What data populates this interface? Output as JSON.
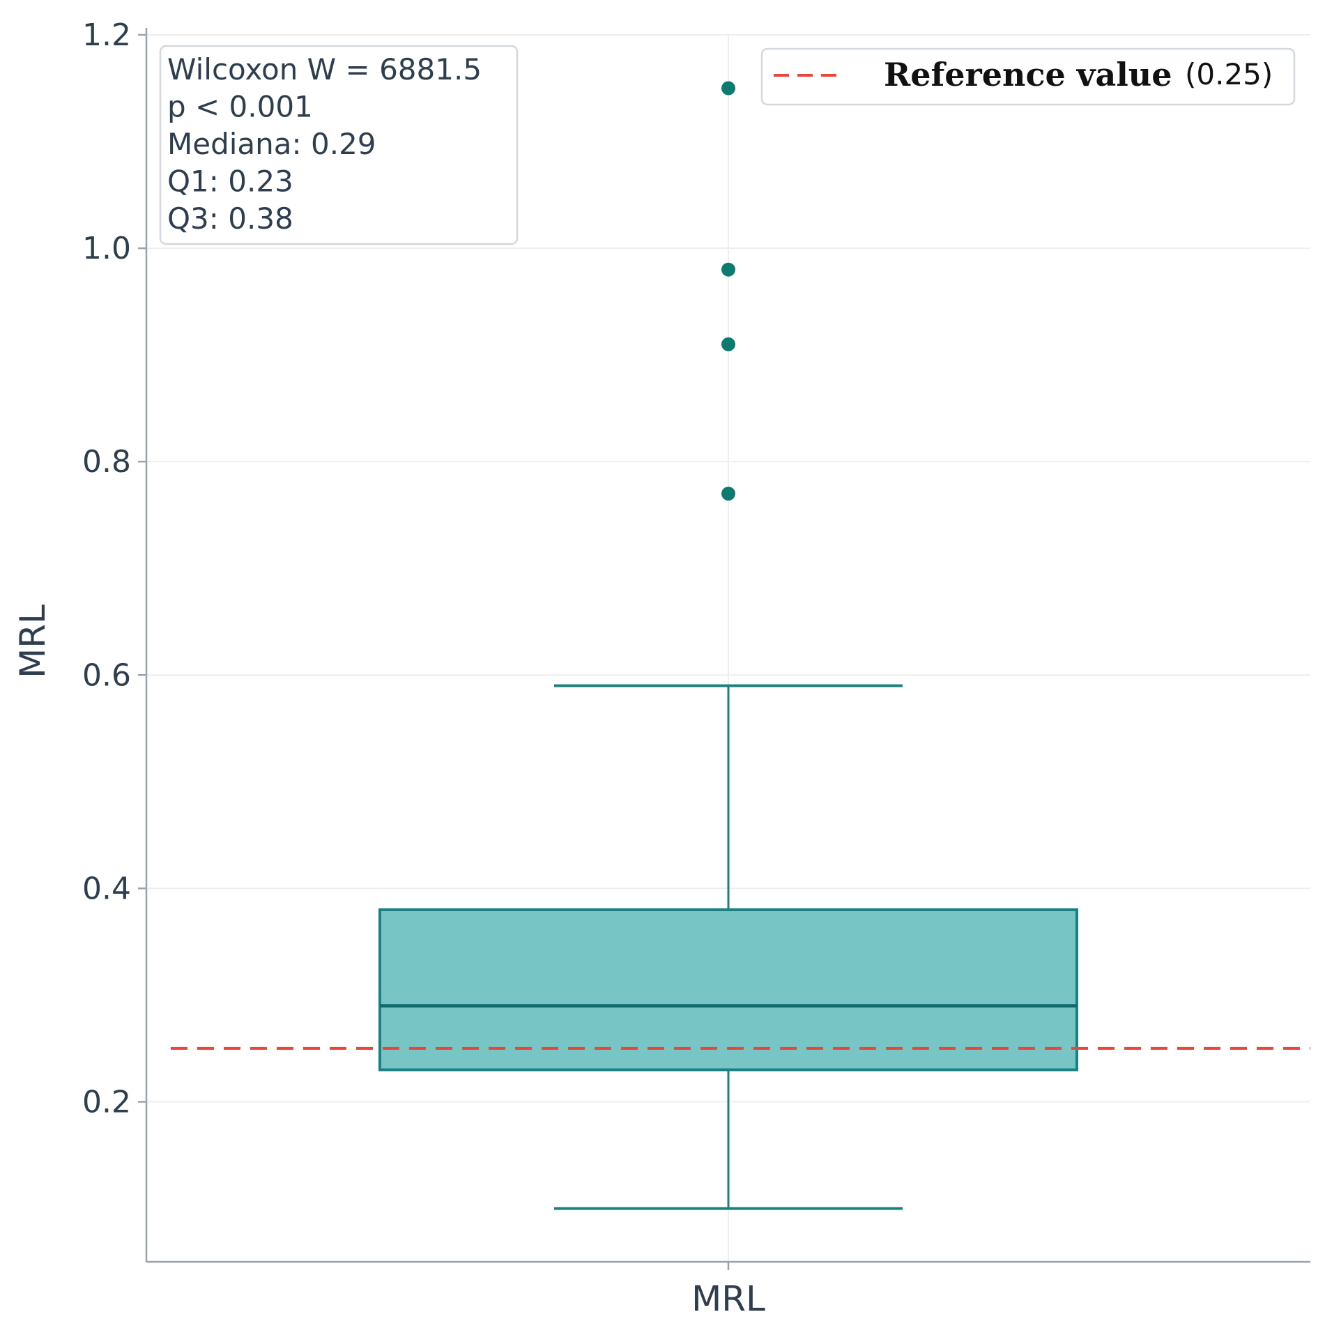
{
  "chart_data": {
    "type": "box",
    "title": "",
    "xlabel": "",
    "ylabel": "MRL",
    "categories": [
      "MRL"
    ],
    "ylim": [
      0.05,
      1.2
    ],
    "yticks": [
      0.2,
      0.4,
      0.6,
      0.8,
      1.0,
      1.2
    ],
    "ytick_labels": [
      "0.2",
      "0.4",
      "0.6",
      "0.8",
      "1.0",
      "1.2"
    ],
    "grid": true,
    "box": {
      "category": "MRL",
      "q1": 0.23,
      "median": 0.29,
      "q3": 0.38,
      "whisker_low": 0.1,
      "whisker_high": 0.59,
      "outliers": [
        0.77,
        0.91,
        0.98,
        1.15
      ]
    },
    "reference_line": {
      "value": 0.25,
      "label": "Reference value",
      "value_label": "(0.25)",
      "color": "#e8473b",
      "style": "dashed"
    },
    "stats_box": [
      "Wilcoxon W = 6881.5",
      "p < 0.001",
      "Mediana: 0.29",
      "Q1: 0.23",
      "Q3: 0.38"
    ],
    "legend_position": "top-right",
    "colors": {
      "box_fill": "#78c5c5",
      "box_edge": "#1a8080",
      "median_line": "#126b6b",
      "outlier": "#0d7a70",
      "axis": "#9aa3ad",
      "grid": "#eeeeee",
      "text": "#2f3e4e"
    }
  }
}
